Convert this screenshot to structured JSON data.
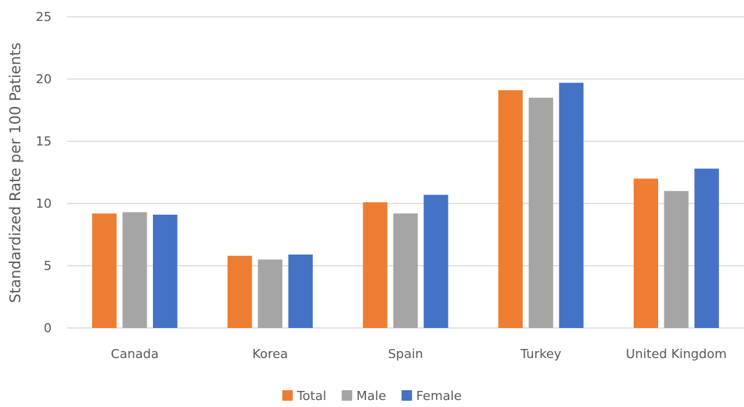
{
  "chart_data": {
    "type": "bar",
    "categories": [
      "Canada",
      "Korea",
      "Spain",
      "Turkey",
      "United Kingdom"
    ],
    "series": [
      {
        "name": "Total",
        "values": [
          9.2,
          5.8,
          10.1,
          19.1,
          12.0
        ],
        "color": "#ED7D31"
      },
      {
        "name": "Male",
        "values": [
          9.3,
          5.5,
          9.2,
          18.5,
          11.0
        ],
        "color": "#A5A5A5"
      },
      {
        "name": "Female",
        "values": [
          9.1,
          5.9,
          10.7,
          19.7,
          12.8
        ],
        "color": "#4472C4"
      }
    ],
    "title": "",
    "xlabel": "",
    "ylabel": "Standardized Rate per 100 Patients",
    "ylim": [
      0,
      25
    ],
    "yticks": [
      0,
      5,
      10,
      15,
      20,
      25
    ],
    "grid": true,
    "gridline_color": "#D9D9D9",
    "legend_position": "bottom"
  }
}
